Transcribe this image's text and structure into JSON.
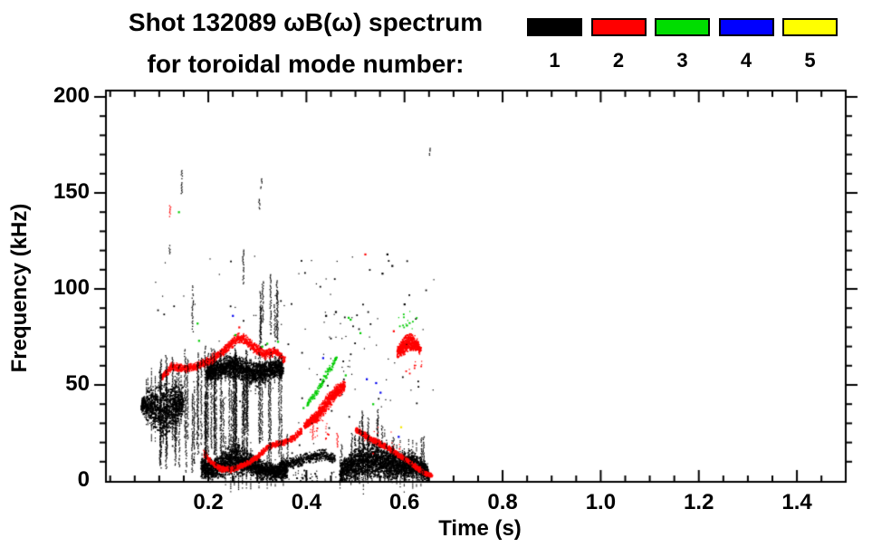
{
  "title": {
    "line1": "Shot 132089 ωB(ω) spectrum",
    "line2": "for toroidal mode number:"
  },
  "legend": {
    "entries": [
      {
        "label": "1",
        "color": "#000000"
      },
      {
        "label": "2",
        "color": "#ff0000"
      },
      {
        "label": "3",
        "color": "#00dd00"
      },
      {
        "label": "4",
        "color": "#0000ff"
      },
      {
        "label": "5",
        "color": "#ffff00"
      }
    ]
  },
  "axes": {
    "xlabel": "Time (s)",
    "ylabel": "Frequency (kHz)",
    "x_tick_labels": [
      "0.2",
      "0.4",
      "0.6",
      "0.8",
      "1.0",
      "1.2",
      "1.4"
    ],
    "x_tick_values": [
      0.2,
      0.4,
      0.6,
      0.8,
      1.0,
      1.2,
      1.4
    ],
    "x_minor_step": 0.05,
    "y_tick_labels": [
      "0",
      "50",
      "100",
      "150",
      "200"
    ],
    "y_tick_values": [
      0,
      50,
      100,
      150,
      200
    ],
    "y_minor_step": 10
  },
  "chart_data": {
    "type": "scatter",
    "title": "Shot 132089 ωB(ω) spectrum for toroidal mode number: 1 2 3 4 5",
    "xlabel": "Time (s)",
    "ylabel": "Frequency (kHz)",
    "xlim": [
      0,
      1.5
    ],
    "ylim": [
      0,
      200
    ],
    "grid": false,
    "legend_position": "top",
    "mode_colors": {
      "1": "#000000",
      "2": "#ff0000",
      "3": "#00cc00",
      "4": "#0000ee",
      "5": "#f5e600"
    },
    "bands": [
      {
        "mode": 1,
        "name": "n1-early-blob-40kHz",
        "density": 18,
        "streaky": true,
        "pts": [
          [
            0.063,
            40,
            3
          ],
          [
            0.075,
            40,
            8
          ],
          [
            0.09,
            38,
            12
          ],
          [
            0.105,
            37,
            13
          ],
          [
            0.12,
            38,
            13
          ],
          [
            0.135,
            40,
            11
          ],
          [
            0.148,
            42,
            7
          ]
        ]
      },
      {
        "mode": 1,
        "name": "n1-band-58kHz",
        "density": 16,
        "streaky": true,
        "pts": [
          [
            0.195,
            56,
            4
          ],
          [
            0.215,
            58,
            5
          ],
          [
            0.235,
            60,
            5
          ],
          [
            0.255,
            60,
            6
          ],
          [
            0.275,
            58,
            6
          ],
          [
            0.295,
            56,
            6
          ],
          [
            0.315,
            57,
            5
          ],
          [
            0.335,
            59,
            5
          ],
          [
            0.352,
            58,
            4
          ]
        ]
      },
      {
        "mode": 1,
        "name": "n1-low-band",
        "density": 16,
        "streaky": true,
        "pts": [
          [
            0.185,
            7,
            5
          ],
          [
            0.21,
            6,
            5
          ],
          [
            0.235,
            10,
            7
          ],
          [
            0.26,
            12,
            8
          ],
          [
            0.285,
            9,
            6
          ],
          [
            0.31,
            6,
            5
          ],
          [
            0.335,
            5,
            4
          ],
          [
            0.36,
            6,
            4
          ]
        ]
      },
      {
        "mode": 1,
        "name": "n1-mid-scraggle",
        "density": 6,
        "streaky": false,
        "pts": [
          [
            0.345,
            9,
            3
          ],
          [
            0.37,
            10,
            3
          ],
          [
            0.4,
            12,
            3
          ],
          [
            0.43,
            14,
            3
          ],
          [
            0.458,
            12,
            3
          ]
        ]
      },
      {
        "mode": 1,
        "name": "n1-late-cluster",
        "density": 18,
        "streaky": true,
        "pts": [
          [
            0.468,
            5,
            5
          ],
          [
            0.49,
            8,
            7
          ],
          [
            0.515,
            11,
            9
          ],
          [
            0.54,
            11,
            9
          ],
          [
            0.565,
            9,
            8
          ],
          [
            0.59,
            8,
            7
          ],
          [
            0.615,
            9,
            7
          ],
          [
            0.638,
            6,
            5
          ],
          [
            0.648,
            4,
            3
          ]
        ]
      },
      {
        "mode": 2,
        "name": "n2-upper-band",
        "density": 7,
        "streaky": false,
        "pts": [
          [
            0.104,
            54,
            1.5
          ],
          [
            0.125,
            60,
            2
          ],
          [
            0.15,
            59,
            2
          ],
          [
            0.175,
            60,
            2
          ],
          [
            0.2,
            63,
            2.5
          ],
          [
            0.23,
            68,
            2.5
          ],
          [
            0.255,
            74,
            2.5
          ],
          [
            0.27,
            75,
            2.5
          ],
          [
            0.29,
            70,
            2.5
          ],
          [
            0.315,
            66,
            2.5
          ],
          [
            0.335,
            68,
            2
          ],
          [
            0.355,
            63,
            2
          ]
        ]
      },
      {
        "mode": 2,
        "name": "n2-low-band",
        "density": 6,
        "streaky": false,
        "pts": [
          [
            0.19,
            15,
            2
          ],
          [
            0.205,
            10,
            1.5
          ],
          [
            0.225,
            6.5,
            1.5
          ],
          [
            0.25,
            6.5,
            1.5
          ],
          [
            0.275,
            9,
            1.5
          ],
          [
            0.3,
            13,
            1.5
          ],
          [
            0.325,
            19,
            1.5
          ],
          [
            0.35,
            20,
            1.5
          ],
          [
            0.375,
            23,
            1.5
          ],
          [
            0.39,
            27,
            2
          ]
        ]
      },
      {
        "mode": 2,
        "name": "n2-chirp-up",
        "density": 14,
        "streaky": false,
        "pts": [
          [
            0.395,
            29,
            2
          ],
          [
            0.415,
            33,
            3
          ],
          [
            0.435,
            39,
            4
          ],
          [
            0.455,
            45,
            4
          ],
          [
            0.47,
            49,
            3
          ],
          [
            0.478,
            50,
            2
          ]
        ]
      },
      {
        "mode": 2,
        "name": "n2-descending",
        "density": 8,
        "streaky": false,
        "pts": [
          [
            0.5,
            27,
            1.5
          ],
          [
            0.53,
            22,
            1.5
          ],
          [
            0.555,
            19,
            1.5
          ],
          [
            0.58,
            15,
            1.5
          ],
          [
            0.61,
            10,
            1.5
          ],
          [
            0.635,
            5,
            1.5
          ],
          [
            0.655,
            3,
            1
          ]
        ]
      },
      {
        "mode": 2,
        "name": "n2-blob-72kHz",
        "density": 16,
        "streaky": false,
        "pts": [
          [
            0.585,
            67,
            3
          ],
          [
            0.598,
            71,
            4.5
          ],
          [
            0.612,
            73,
            4.5
          ],
          [
            0.625,
            71,
            3
          ],
          [
            0.632,
            68,
            2
          ]
        ]
      },
      {
        "mode": 3,
        "name": "n3-chirp-up",
        "density": 3,
        "streaky": false,
        "pts": [
          [
            0.4,
            40,
            1.5
          ],
          [
            0.42,
            47,
            2
          ],
          [
            0.44,
            56,
            2
          ],
          [
            0.455,
            62,
            1.5
          ],
          [
            0.462,
            65,
            1
          ]
        ]
      }
    ],
    "spikes": [
      {
        "mode": 1,
        "t": 0.145,
        "f0": 150,
        "f1": 163
      },
      {
        "mode": 1,
        "t": 0.12,
        "f0": 118,
        "f1": 124
      },
      {
        "mode": 1,
        "t": 0.167,
        "f0": 78,
        "f1": 102
      },
      {
        "mode": 1,
        "t": 0.27,
        "f0": 103,
        "f1": 121
      },
      {
        "mode": 1,
        "t": 0.303,
        "f0": 142,
        "f1": 147
      },
      {
        "mode": 1,
        "t": 0.307,
        "f0": 152,
        "f1": 158
      },
      {
        "mode": 1,
        "t": 0.31,
        "f0": 83,
        "f1": 105
      },
      {
        "mode": 1,
        "t": 0.326,
        "f0": 79,
        "f1": 108
      },
      {
        "mode": 1,
        "t": 0.34,
        "f0": 74,
        "f1": 100
      },
      {
        "mode": 1,
        "t": 0.65,
        "f0": 170,
        "f1": 174
      },
      {
        "mode": 1,
        "t": 0.36,
        "f0": 2,
        "f1": 25
      },
      {
        "mode": 2,
        "t": 0.121,
        "f0": 138,
        "f1": 144
      },
      {
        "mode": 2,
        "t": 0.462,
        "f0": 18,
        "f1": 25
      },
      {
        "mode": 2,
        "t": 0.412,
        "f0": 22,
        "f1": 29
      }
    ],
    "spike_regions": [
      {
        "mode": 1,
        "t0": 0.095,
        "t1": 0.27,
        "n": 42,
        "f0": [
          4,
          24
        ],
        "f1": [
          42,
          72
        ]
      },
      {
        "mode": 1,
        "t0": 0.27,
        "t1": 0.355,
        "n": 14,
        "f0": [
          8,
          30
        ],
        "f1": [
          48,
          70
        ]
      },
      {
        "mode": 1,
        "t0": 0.28,
        "t1": 0.35,
        "n": 5,
        "f0": [
          60,
          75
        ],
        "f1": [
          90,
          110
        ]
      },
      {
        "mode": 1,
        "t0": 0.47,
        "t1": 0.64,
        "n": 22,
        "f0": [
          0,
          4
        ],
        "f1": [
          12,
          26
        ]
      },
      {
        "mode": 1,
        "t0": 0.5,
        "t1": 0.56,
        "n": 7,
        "f0": [
          16,
          24
        ],
        "f1": [
          28,
          38
        ]
      }
    ],
    "scatter_regions": [
      {
        "mode": 1,
        "t0": 0.08,
        "t1": 0.66,
        "fl": 2,
        "fh": 118,
        "n": 130
      },
      {
        "mode": 1,
        "t0": 0.35,
        "t1": 0.48,
        "fl": 0,
        "fh": 6,
        "n": 45
      },
      {
        "mode": 1,
        "t0": 0.42,
        "t1": 0.5,
        "fl": 40,
        "fh": 90,
        "n": 22
      },
      {
        "mode": 2,
        "t0": 0.5,
        "t1": 0.6,
        "fl": 14,
        "fh": 30,
        "n": 18
      },
      {
        "mode": 2,
        "t0": 0.405,
        "t1": 0.445,
        "fl": 22,
        "fh": 32,
        "n": 22
      },
      {
        "mode": 2,
        "t0": 0.6,
        "t1": 0.635,
        "fl": 56,
        "fh": 64,
        "n": 10
      },
      {
        "mode": 3,
        "t0": 0.585,
        "t1": 0.625,
        "fl": 79,
        "fh": 89,
        "n": 16
      }
    ],
    "dots": [
      {
        "mode": 3,
        "pts": [
          [
            0.14,
            140
          ],
          [
            0.178,
            82
          ],
          [
            0.181,
            73
          ],
          [
            0.255,
            76
          ],
          [
            0.31,
            70
          ],
          [
            0.32,
            71.5
          ],
          [
            0.342,
            72.5
          ],
          [
            0.394,
            38
          ],
          [
            0.403,
            39.5
          ],
          [
            0.48,
            55
          ],
          [
            0.486,
            85
          ],
          [
            0.49,
            84
          ],
          [
            0.51,
            77
          ],
          [
            0.536,
            40
          ]
        ]
      },
      {
        "mode": 4,
        "pts": [
          [
            0.25,
            86
          ],
          [
            0.434,
            64
          ],
          [
            0.523,
            53
          ],
          [
            0.542,
            51
          ],
          [
            0.551,
            46
          ],
          [
            0.588,
            23
          ]
        ]
      },
      {
        "mode": 5,
        "pts": [
          [
            0.593,
            28
          ]
        ]
      },
      {
        "mode": 2,
        "pts": [
          [
            0.263,
            80
          ],
          [
            0.52,
            118
          ],
          [
            0.578,
            78
          ]
        ]
      },
      {
        "mode": 1,
        "pts": [
          [
            0.555,
            108
          ],
          [
            0.565,
            118
          ],
          [
            0.575,
            112
          ],
          [
            0.6,
            92
          ],
          [
            0.44,
            86
          ],
          [
            0.46,
            88
          ]
        ]
      }
    ]
  }
}
